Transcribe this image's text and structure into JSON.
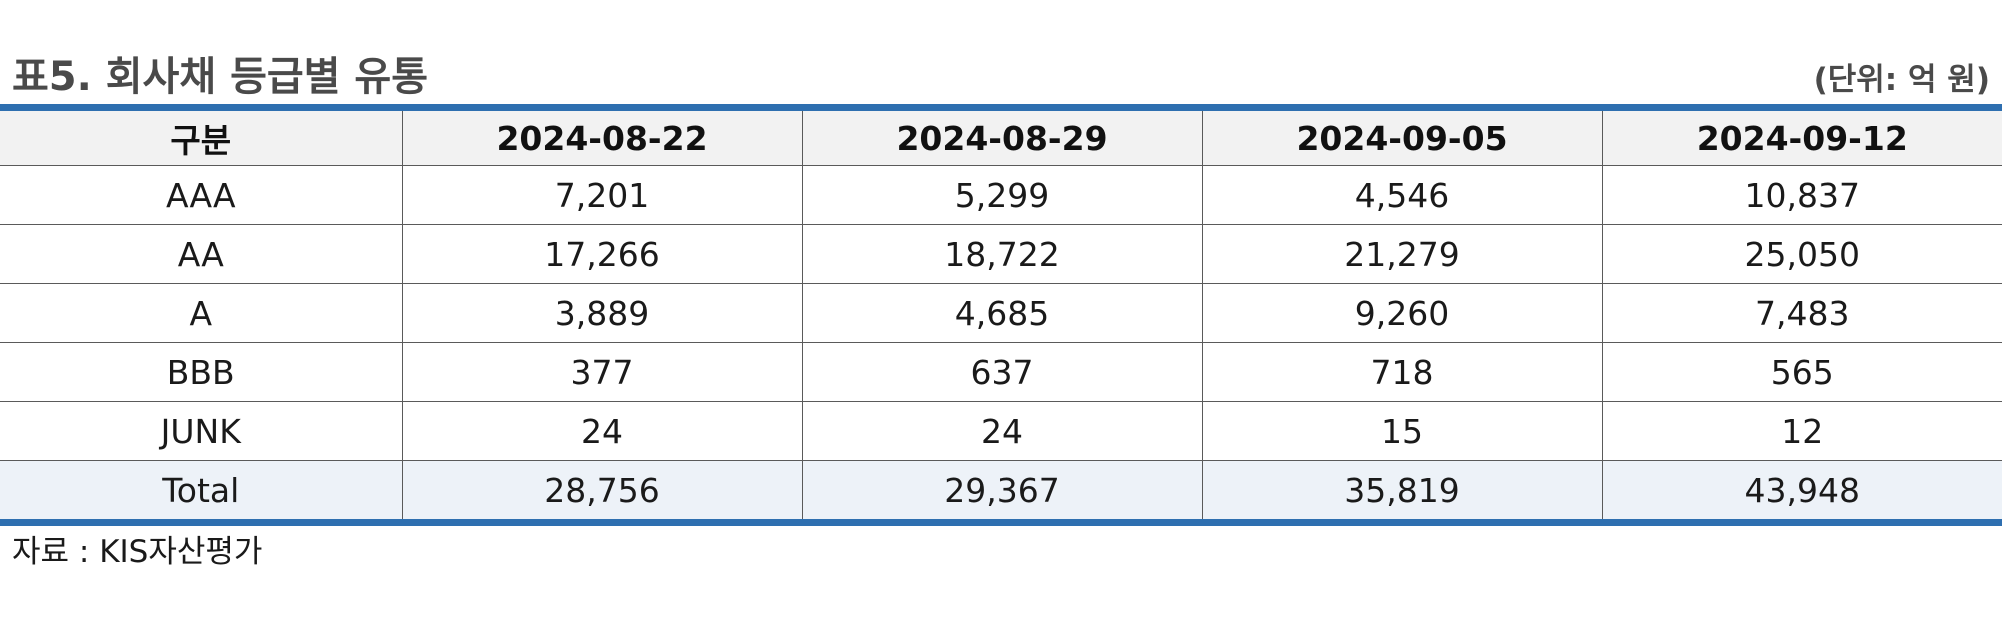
{
  "title": "표5. 회사채 등급별 유통",
  "unit": "(단위: 억 원)",
  "table": {
    "headers": [
      "구분",
      "2024-08-22",
      "2024-08-29",
      "2024-09-05",
      "2024-09-12"
    ],
    "rows": [
      [
        "AAA",
        "7,201",
        "5,299",
        "4,546",
        "10,837"
      ],
      [
        "AA",
        "17,266",
        "18,722",
        "21,279",
        "25,050"
      ],
      [
        "A",
        "3,889",
        "4,685",
        "9,260",
        "7,483"
      ],
      [
        "BBB",
        "377",
        "637",
        "718",
        "565"
      ],
      [
        "JUNK",
        "24",
        "24",
        "15",
        "12"
      ],
      [
        "Total",
        "28,756",
        "29,367",
        "35,819",
        "43,948"
      ]
    ]
  },
  "source": "자료 : KIS자산평가",
  "colors": {
    "accent": "#2e6fb0",
    "header_bg": "#f2f2f2",
    "total_bg": "#edf2f8",
    "title_color": "#4a4a4a"
  }
}
